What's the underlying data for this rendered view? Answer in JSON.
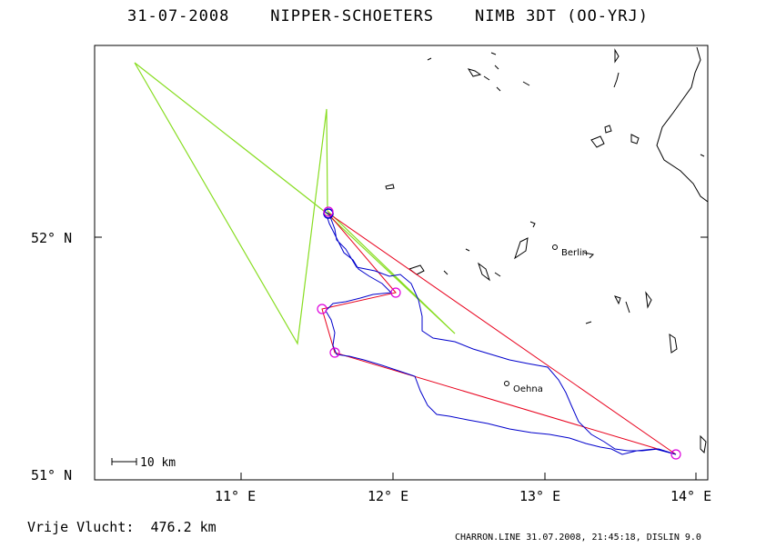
{
  "header": {
    "title": "31-07-2008    NIPPER-SCHOETERS    NIMB 3DT (OO-YRJ)"
  },
  "map": {
    "lat_labels": [
      "52° N",
      "51° N"
    ],
    "lon_labels": [
      "11° E",
      "12° E",
      "13° E",
      "14° E"
    ],
    "scale_label": "10 km",
    "places": [
      {
        "name": "Berlin"
      },
      {
        "name": "Oehna"
      }
    ],
    "colors": {
      "task_line": "#e8001c",
      "flight_track": "#0000cc",
      "alt_track": "#88dd22",
      "turnpoint": "#dd00dd",
      "coastline": "#000000"
    }
  },
  "footer": {
    "distance": "Vrije Vlucht:  476.2 km",
    "stamp": "CHARRON.LINE 31.07.2008, 21:45:18, DISLIN 9.0"
  }
}
